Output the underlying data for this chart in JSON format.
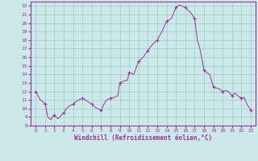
{
  "xlabel": "Windchill (Refroidissement éolien,°C)",
  "bg_color": "#cce8e8",
  "grid_color": "#99cccc",
  "line_color": "#993399",
  "marker_color": "#993399",
  "xlim": [
    -0.5,
    23.5
  ],
  "ylim": [
    8,
    22.5
  ],
  "yticks": [
    8,
    9,
    10,
    11,
    12,
    13,
    14,
    15,
    16,
    17,
    18,
    19,
    20,
    21,
    22
  ],
  "xticks": [
    0,
    1,
    2,
    3,
    4,
    5,
    6,
    7,
    8,
    9,
    10,
    11,
    12,
    13,
    14,
    15,
    16,
    17,
    18,
    19,
    20,
    21,
    22,
    23
  ],
  "x": [
    0,
    0.25,
    0.5,
    0.75,
    1.0,
    1.1,
    1.2,
    1.3,
    1.5,
    1.6,
    1.7,
    1.8,
    2.0,
    2.2,
    2.4,
    2.6,
    2.8,
    3.0,
    3.3,
    3.6,
    4.0,
    4.3,
    4.6,
    5.0,
    5.3,
    5.6,
    6.0,
    6.3,
    6.6,
    7.0,
    7.3,
    7.6,
    8.0,
    8.4,
    8.8,
    9.0,
    9.4,
    9.8,
    10.0,
    10.5,
    11.0,
    11.5,
    12.0,
    12.5,
    13.0,
    13.5,
    14.0,
    14.5,
    15.0,
    15.2,
    15.4,
    15.6,
    15.8,
    16.0,
    16.3,
    16.6,
    17.0,
    17.3,
    17.6,
    18.0,
    18.3,
    18.6,
    19.0,
    19.3,
    19.6,
    20.0,
    20.3,
    20.6,
    21.0,
    21.3,
    21.6,
    22.0,
    22.3,
    22.6,
    23.0
  ],
  "y": [
    12.0,
    11.5,
    11.0,
    10.8,
    10.5,
    10.2,
    9.5,
    9.0,
    8.8,
    8.7,
    8.8,
    9.0,
    9.2,
    9.0,
    8.8,
    9.0,
    9.3,
    9.5,
    10.0,
    10.3,
    10.5,
    10.8,
    11.0,
    11.2,
    11.0,
    10.8,
    10.5,
    10.2,
    10.0,
    9.8,
    10.5,
    11.0,
    11.2,
    11.3,
    11.5,
    13.0,
    13.2,
    13.3,
    14.2,
    14.0,
    15.5,
    16.0,
    16.8,
    17.5,
    18.0,
    19.0,
    20.2,
    20.5,
    21.8,
    22.0,
    22.1,
    22.0,
    21.9,
    21.8,
    21.5,
    21.2,
    20.5,
    18.0,
    16.8,
    14.5,
    14.2,
    14.0,
    12.5,
    12.4,
    12.3,
    12.0,
    12.1,
    12.0,
    11.5,
    11.8,
    11.5,
    11.2,
    11.3,
    10.5,
    9.8
  ],
  "marker_x": [
    0,
    1,
    2,
    3,
    4,
    5,
    6,
    7,
    8,
    9,
    10,
    11,
    12,
    13,
    14,
    15,
    16,
    17,
    18,
    19,
    20,
    21,
    22,
    23
  ],
  "marker_y": [
    12.0,
    10.5,
    9.2,
    9.5,
    10.5,
    11.2,
    10.5,
    9.8,
    11.2,
    13.0,
    14.2,
    15.5,
    16.8,
    18.0,
    20.2,
    21.8,
    21.8,
    20.5,
    14.5,
    12.5,
    12.0,
    11.5,
    11.2,
    9.8
  ],
  "tick_color": "#993399",
  "spine_color": "#993399"
}
